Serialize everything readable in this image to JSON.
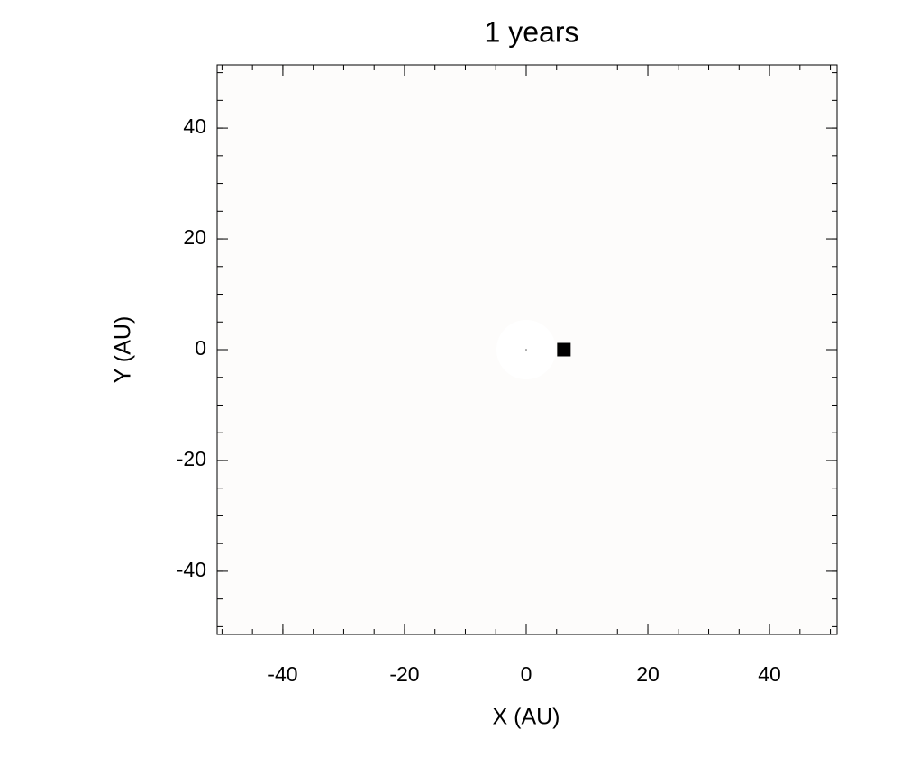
{
  "chart_data": {
    "type": "scatter",
    "title": "1 years",
    "x_label": "X (AU)",
    "y_label": "Y (AU)",
    "series": [
      {
        "color": "#000000",
        "marker": "square",
        "x": [
          6.2
        ],
        "values": [
          0
        ]
      }
    ],
    "xlim": [
      -50.8,
      51.1
    ],
    "ylim": [
      -51.4,
      51.4
    ],
    "xticks": [
      -40,
      -20,
      0,
      20,
      40
    ],
    "yticks": [
      -40,
      -20,
      0,
      20,
      40
    ],
    "xminorticks": [
      -50,
      -45,
      -40,
      -35,
      -30,
      -25,
      -20,
      -15,
      -10,
      -5,
      0,
      5,
      10,
      15,
      20,
      25,
      30,
      35,
      40,
      45,
      50
    ],
    "yminorticks": [
      -50,
      -45,
      -40,
      -35,
      -30,
      -25,
      -20,
      -15,
      -10,
      -5,
      0,
      5,
      10,
      15,
      20,
      25,
      30,
      35,
      40,
      45,
      50
    ],
    "background": "#fdfcfb"
  }
}
